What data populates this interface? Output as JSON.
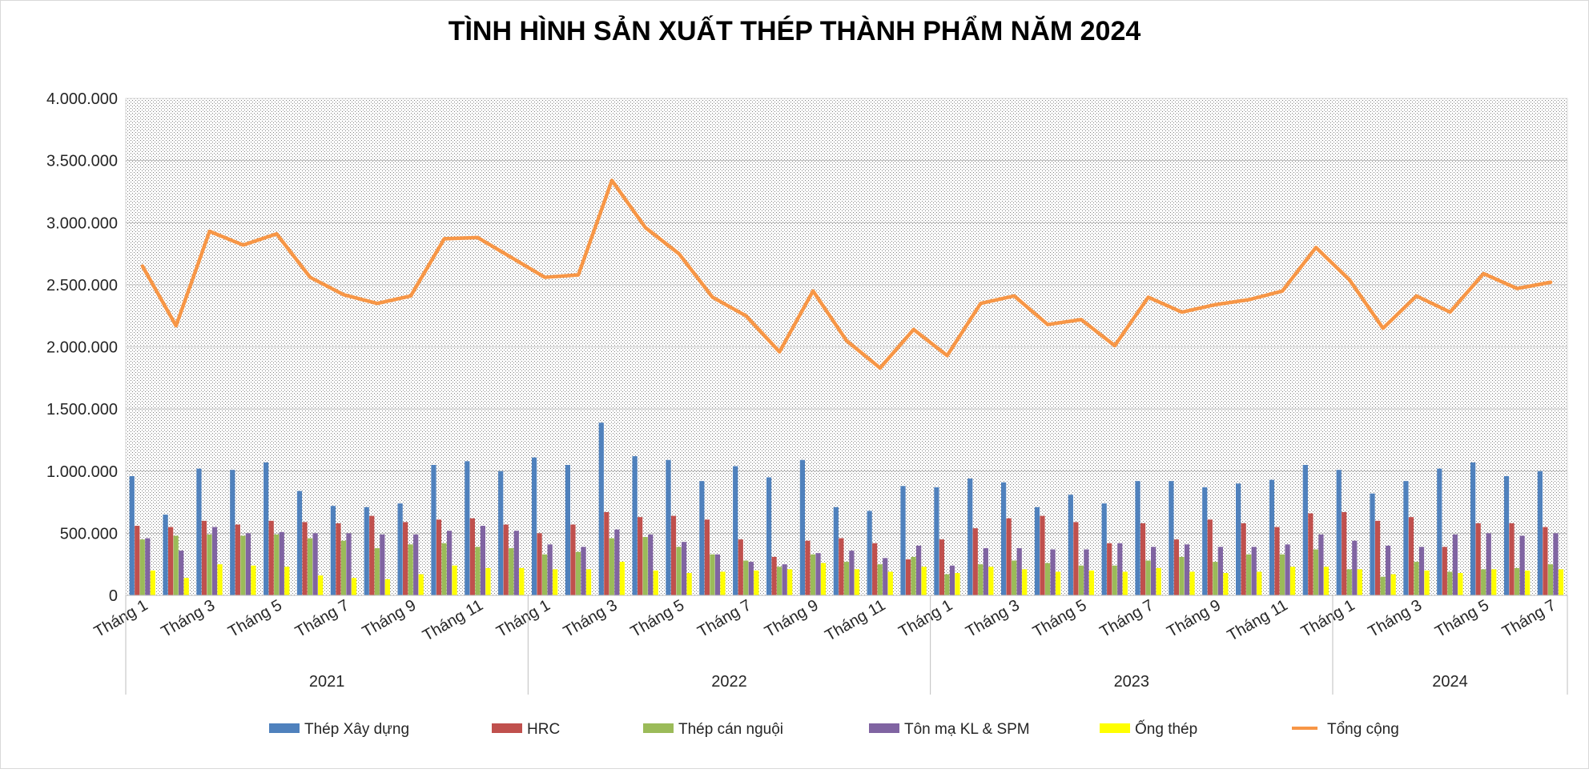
{
  "chart_data": {
    "type": "bar",
    "title": "TÌNH HÌNH SẢN XUẤT THÉP THÀNH PHẨM NĂM 2024",
    "xlabel": "",
    "ylabel": "",
    "ylim": [
      0,
      4000000
    ],
    "y_ticks": [
      0,
      500000,
      1000000,
      1500000,
      2000000,
      2500000,
      3000000,
      3500000,
      4000000
    ],
    "y_tick_labels": [
      "0",
      "500.000",
      "1.000.000",
      "1.500.000",
      "2.000.000",
      "2.500.000",
      "3.000.000",
      "3.500.000",
      "4.000.000"
    ],
    "grid": true,
    "legend_position": "bottom",
    "categories": [
      "Tháng 1",
      "Tháng 2",
      "Tháng 3",
      "Tháng 4",
      "Tháng 5",
      "Tháng 6",
      "Tháng 7",
      "Tháng 8",
      "Tháng 9",
      "Tháng 10",
      "Tháng 11",
      "Tháng 12",
      "Tháng 1",
      "Tháng 2",
      "Tháng 3",
      "Tháng 4",
      "Tháng 5",
      "Tháng 6",
      "Tháng 7",
      "Tháng 8",
      "Tháng 9",
      "Tháng 10",
      "Tháng 11",
      "Tháng 12",
      "Tháng 1",
      "Tháng 2",
      "Tháng 3",
      "Tháng 4",
      "Tháng 5",
      "Tháng 6",
      "Tháng 7",
      "Tháng 8",
      "Tháng 9",
      "Tháng 10",
      "Tháng 11",
      "Tháng 12",
      "Tháng 1",
      "Tháng 2",
      "Tháng 3",
      "Tháng 4",
      "Tháng 5",
      "Tháng 6",
      "Tháng 7"
    ],
    "shown_tick_labels": [
      0,
      2,
      4,
      6,
      8,
      10,
      12,
      14,
      16,
      18,
      20,
      22,
      24,
      26,
      28,
      30,
      32,
      34,
      36,
      38,
      40,
      42
    ],
    "year_groups": [
      {
        "label": "2021",
        "start": 0,
        "count": 12
      },
      {
        "label": "2022",
        "start": 12,
        "count": 12
      },
      {
        "label": "2023",
        "start": 24,
        "count": 12
      },
      {
        "label": "2024",
        "start": 36,
        "count": 7
      }
    ],
    "series": [
      {
        "name": "Thép Xây dựng",
        "kind": "bar",
        "color": "#4f81bd",
        "values": [
          960000,
          650000,
          1020000,
          1010000,
          1070000,
          840000,
          720000,
          710000,
          740000,
          1050000,
          1080000,
          1000000,
          1110000,
          1050000,
          1390000,
          1120000,
          1090000,
          920000,
          1040000,
          950000,
          1090000,
          710000,
          680000,
          880000,
          870000,
          940000,
          910000,
          710000,
          810000,
          740000,
          920000,
          920000,
          870000,
          900000,
          930000,
          1050000,
          1010000,
          820000,
          920000,
          1020000,
          1070000,
          960000,
          1000000
        ]
      },
      {
        "name": "HRC",
        "kind": "bar",
        "color": "#c0504d",
        "values": [
          560000,
          550000,
          600000,
          570000,
          600000,
          590000,
          580000,
          640000,
          590000,
          610000,
          620000,
          570000,
          500000,
          570000,
          670000,
          630000,
          640000,
          610000,
          450000,
          310000,
          440000,
          460000,
          420000,
          290000,
          450000,
          540000,
          620000,
          640000,
          590000,
          420000,
          580000,
          450000,
          610000,
          580000,
          550000,
          660000,
          670000,
          600000,
          630000,
          390000,
          580000,
          580000,
          550000
        ]
      },
      {
        "name": "Thép cán nguội",
        "kind": "bar",
        "color": "#9bbb59",
        "values": [
          450000,
          480000,
          490000,
          480000,
          490000,
          460000,
          440000,
          380000,
          410000,
          420000,
          390000,
          380000,
          330000,
          350000,
          460000,
          470000,
          390000,
          330000,
          280000,
          230000,
          330000,
          270000,
          250000,
          310000,
          170000,
          250000,
          280000,
          260000,
          240000,
          240000,
          280000,
          310000,
          270000,
          330000,
          330000,
          370000,
          210000,
          150000,
          270000,
          190000,
          210000,
          220000,
          250000
        ]
      },
      {
        "name": "Tôn mạ KL & SPM",
        "kind": "bar",
        "color": "#8064a2",
        "values": [
          460000,
          360000,
          550000,
          500000,
          510000,
          500000,
          500000,
          490000,
          490000,
          520000,
          560000,
          520000,
          410000,
          390000,
          530000,
          490000,
          430000,
          330000,
          270000,
          250000,
          340000,
          360000,
          300000,
          400000,
          240000,
          380000,
          380000,
          370000,
          370000,
          420000,
          390000,
          410000,
          390000,
          390000,
          410000,
          490000,
          440000,
          400000,
          390000,
          490000,
          500000,
          480000,
          500000
        ]
      },
      {
        "name": "Ống thép",
        "kind": "bar",
        "color": "#ffff00",
        "values": [
          200000,
          140000,
          250000,
          240000,
          230000,
          160000,
          140000,
          130000,
          170000,
          240000,
          220000,
          220000,
          210000,
          210000,
          270000,
          200000,
          180000,
          190000,
          200000,
          210000,
          260000,
          210000,
          190000,
          230000,
          180000,
          230000,
          210000,
          190000,
          200000,
          190000,
          220000,
          190000,
          180000,
          190000,
          230000,
          230000,
          210000,
          170000,
          200000,
          180000,
          210000,
          200000,
          210000
        ]
      },
      {
        "name": "Tổng cộng",
        "kind": "line",
        "color": "#f79646",
        "values": [
          2650000,
          2170000,
          2930000,
          2820000,
          2910000,
          2560000,
          2420000,
          2350000,
          2410000,
          2870000,
          2880000,
          2720000,
          2560000,
          2580000,
          3340000,
          2960000,
          2750000,
          2400000,
          2250000,
          1960000,
          2450000,
          2050000,
          1830000,
          2140000,
          1930000,
          2350000,
          2410000,
          2180000,
          2220000,
          2010000,
          2400000,
          2280000,
          2340000,
          2380000,
          2450000,
          2800000,
          2540000,
          2150000,
          2410000,
          2280000,
          2590000,
          2470000,
          2520000
        ]
      }
    ]
  }
}
